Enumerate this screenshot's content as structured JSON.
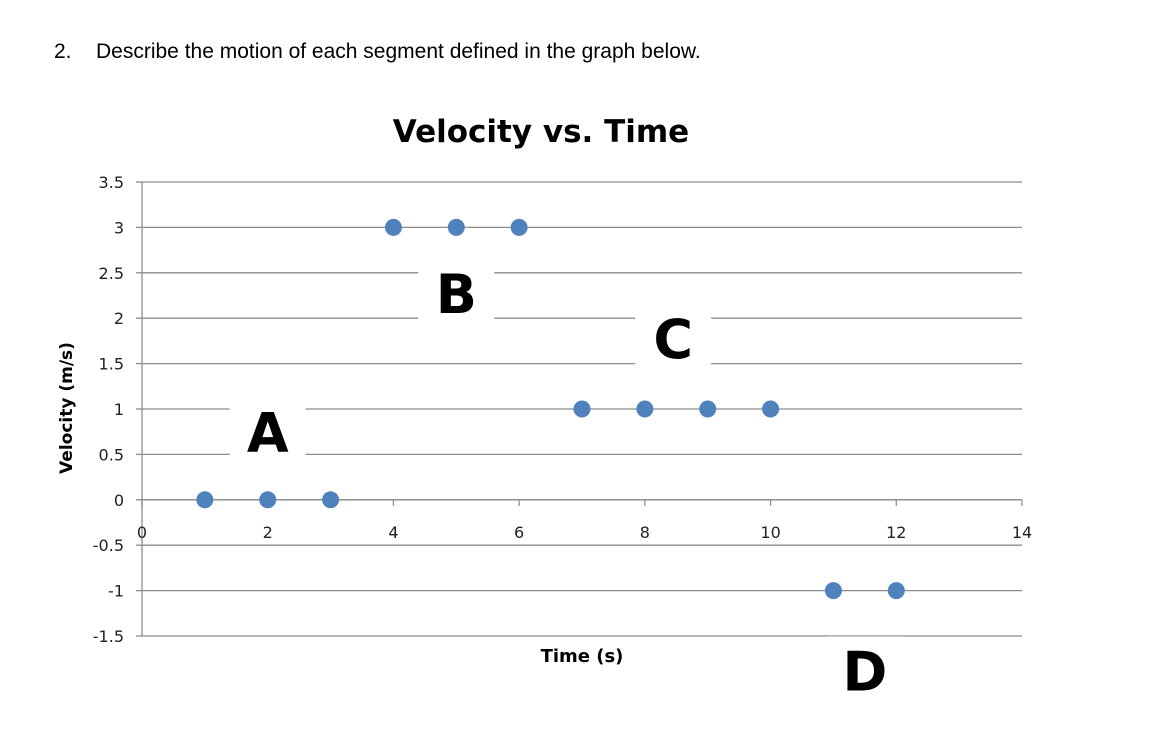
{
  "question": {
    "number": "2.",
    "text": "Describe the motion of each segment defined in the graph below."
  },
  "chart_data": {
    "type": "scatter",
    "title": "Velocity vs. Time",
    "xlabel": "Time (s)",
    "ylabel": "Velocity (m/s)",
    "xlim": [
      0,
      14
    ],
    "ylim": [
      -1.5,
      3.5
    ],
    "xticks": [
      0,
      2,
      4,
      6,
      8,
      10,
      12,
      14
    ],
    "yticks": [
      3.5,
      3,
      2.5,
      2,
      1.5,
      1,
      0.5,
      0,
      -0.5,
      -1,
      -1.5
    ],
    "xtick_labels": [
      "0",
      "2",
      "4",
      "6",
      "8",
      "10",
      "12",
      "14"
    ],
    "ytick_labels": [
      "3.5",
      "3",
      "2.5",
      "2",
      "1.5",
      "1",
      "0.5",
      "0",
      "-0.5",
      "-1",
      "-1.5"
    ],
    "grid": true,
    "marker_color": "#4f81bd",
    "series": [
      {
        "points": [
          {
            "x": 1,
            "y": 0
          },
          {
            "x": 2,
            "y": 0
          },
          {
            "x": 3,
            "y": 0
          },
          {
            "x": 4,
            "y": 3
          },
          {
            "x": 5,
            "y": 3
          },
          {
            "x": 6,
            "y": 3
          },
          {
            "x": 7,
            "y": 1
          },
          {
            "x": 8,
            "y": 1
          },
          {
            "x": 9,
            "y": 1
          },
          {
            "x": 10,
            "y": 1
          },
          {
            "x": 11,
            "y": -1
          },
          {
            "x": 12,
            "y": -1
          }
        ]
      }
    ],
    "segment_labels": [
      {
        "text": "A",
        "x": 2.0,
        "y": 0.75
      },
      {
        "text": "B",
        "x": 5.0,
        "y": 2.28
      },
      {
        "text": "C",
        "x": 8.45,
        "y": 1.78
      },
      {
        "text": "D",
        "x": 11.5,
        "y": -1.88
      }
    ]
  }
}
